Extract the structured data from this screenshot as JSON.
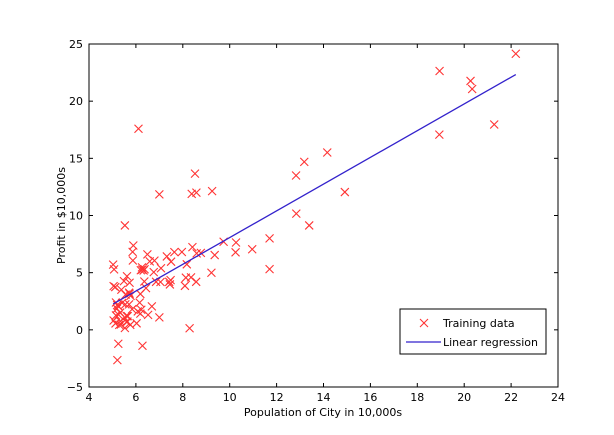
{
  "chart_data": {
    "type": "scatter",
    "title": "",
    "xlabel": "Population of City in 10,000s",
    "ylabel": "Profit in $10,000s",
    "xlim": [
      4,
      24
    ],
    "ylim": [
      -5,
      25
    ],
    "xticks": [
      4,
      6,
      8,
      10,
      12,
      14,
      16,
      18,
      20,
      22,
      24
    ],
    "yticks": [
      -5,
      0,
      5,
      10,
      15,
      20,
      25
    ],
    "xtick_labels": [
      "4",
      "6",
      "8",
      "10",
      "12",
      "14",
      "16",
      "18",
      "20",
      "22",
      "24"
    ],
    "ytick_labels": [
      "−5",
      "0",
      "5",
      "10",
      "15",
      "20",
      "25"
    ],
    "grid": false,
    "legend_position": "bottom-right",
    "series": [
      {
        "name": "Training data",
        "marker": "x",
        "color": "#ff3333",
        "points": [
          [
            6.11,
            17.59
          ],
          [
            5.53,
            9.13
          ],
          [
            8.52,
            13.66
          ],
          [
            7.0,
            11.85
          ],
          [
            5.86,
            6.82
          ],
          [
            8.38,
            11.89
          ],
          [
            7.48,
            4.35
          ],
          [
            8.58,
            12.0
          ],
          [
            6.49,
            6.6
          ],
          [
            5.05,
            3.82
          ],
          [
            5.71,
            3.25
          ],
          [
            14.16,
            15.51
          ],
          [
            5.73,
            3.16
          ],
          [
            8.41,
            7.23
          ],
          [
            5.64,
            0.72
          ],
          [
            5.38,
            3.51
          ],
          [
            6.37,
            5.3
          ],
          [
            5.13,
            0.56
          ],
          [
            6.43,
            3.65
          ],
          [
            7.07,
            5.39
          ],
          [
            6.19,
            3.14
          ],
          [
            20.27,
            21.77
          ],
          [
            5.49,
            4.26
          ],
          [
            6.33,
            5.19
          ],
          [
            5.56,
            3.08
          ],
          [
            18.95,
            22.64
          ],
          [
            12.83,
            13.5
          ],
          [
            10.96,
            7.05
          ],
          [
            13.18,
            14.69
          ],
          [
            22.2,
            24.15
          ],
          [
            5.25,
            -1.22
          ],
          [
            6.59,
            5.99
          ],
          [
            9.25,
            12.13
          ],
          [
            5.19,
            1.85
          ],
          [
            9.36,
            6.54
          ],
          [
            8.13,
            4.56
          ],
          [
            5.73,
            4.12
          ],
          [
            8.77,
            6.73
          ],
          [
            6.52,
            1.31
          ],
          [
            6.36,
            4.23
          ],
          [
            5.12,
            3.74
          ],
          [
            11.7,
            8.0
          ],
          [
            5.33,
            0.75
          ],
          [
            5.15,
            2.39
          ],
          [
            8.29,
            0.14
          ],
          [
            9.74,
            7.7
          ],
          [
            7.05,
            4.18
          ],
          [
            5.71,
            2.23
          ],
          [
            7.32,
            6.42
          ],
          [
            5.41,
            2.36
          ],
          [
            10.27,
            7.64
          ],
          [
            5.77,
            2.97
          ],
          [
            5.15,
            1.26
          ],
          [
            5.2,
            2.16
          ],
          [
            5.61,
            1.2
          ],
          [
            7.64,
            6.8
          ],
          [
            5.87,
            6.06
          ],
          [
            6.26,
            5.46
          ],
          [
            5.52,
            1.09
          ],
          [
            6.16,
            2.38
          ],
          [
            5.89,
            7.38
          ],
          [
            13.39,
            9.13
          ],
          [
            8.57,
            4.2
          ],
          [
            5.24,
            2.09
          ],
          [
            6.08,
            1.61
          ],
          [
            5.03,
            5.7
          ],
          [
            5.33,
            1.51
          ],
          [
            6.79,
            6.05
          ],
          [
            5.55,
            2.23
          ],
          [
            5.07,
            5.29
          ],
          [
            6.19,
            1.42
          ],
          [
            5.62,
            4.69
          ],
          [
            6.23,
            1.76
          ],
          [
            6.03,
            0.57
          ],
          [
            12.84,
            10.16
          ],
          [
            7.5,
            5.96
          ],
          [
            7.0,
            1.09
          ],
          [
            6.68,
            2.05
          ],
          [
            5.76,
            0.44
          ],
          [
            5.6,
            0.7
          ],
          [
            5.29,
            0.43
          ],
          [
            8.35,
            4.59
          ],
          [
            5.21,
            -2.65
          ],
          [
            6.27,
            5.27
          ],
          [
            5.05,
            0.82
          ],
          [
            5.36,
            0.47
          ],
          [
            11.7,
            5.31
          ],
          [
            10.25,
            6.78
          ],
          [
            5.26,
            1.32
          ],
          [
            5.65,
            1.2
          ],
          [
            5.53,
            0.16
          ],
          [
            8.59,
            6.69
          ],
          [
            6.21,
            5.21
          ],
          [
            20.34,
            21.06
          ],
          [
            18.94,
            17.07
          ],
          [
            21.28,
            17.96
          ],
          [
            14.91,
            12.05
          ],
          [
            7.96,
            6.81
          ],
          [
            8.09,
            3.85
          ],
          [
            6.86,
            4.2
          ],
          [
            6.76,
            5.05
          ],
          [
            7.42,
            4.2
          ],
          [
            8.17,
            5.73
          ],
          [
            9.22,
            4.99
          ],
          [
            7.45,
            3.97
          ],
          [
            6.28,
            -1.39
          ],
          [
            5.84,
            1.8
          ]
        ]
      },
      {
        "name": "Linear regression",
        "marker": "line",
        "color": "#3322cc",
        "points": [
          [
            5.03,
            2.26
          ],
          [
            22.2,
            22.33
          ]
        ]
      }
    ]
  }
}
